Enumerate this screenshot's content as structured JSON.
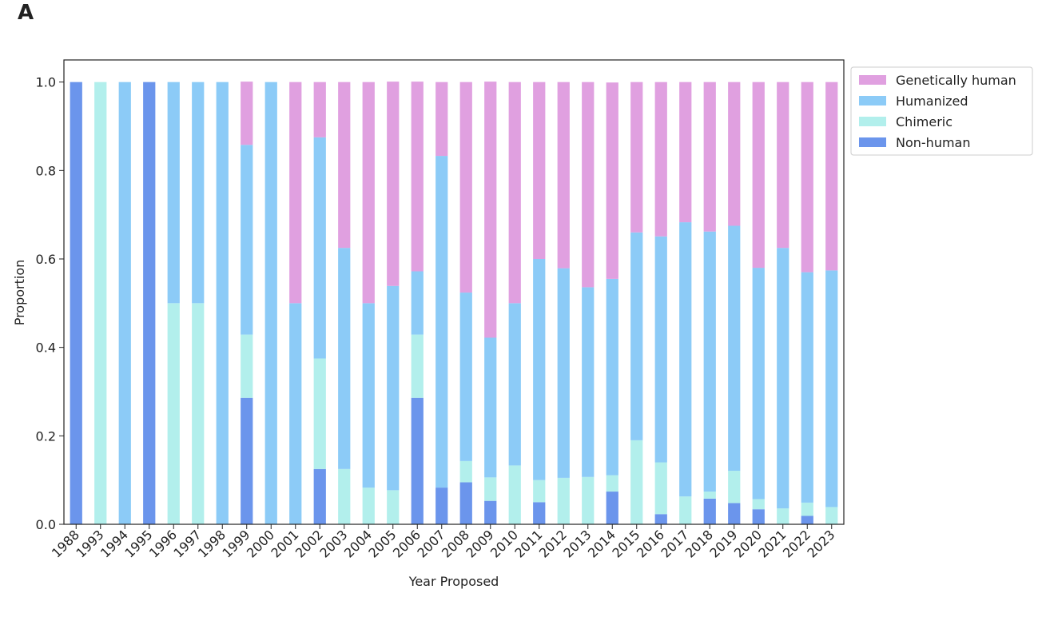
{
  "panel_label": "A",
  "chart_data": {
    "type": "stacked-bar",
    "xlabel": "Year Proposed",
    "ylabel": "Proportion",
    "categories": [
      "1988",
      "1993",
      "1994",
      "1995",
      "1996",
      "1997",
      "1998",
      "1999",
      "2000",
      "2001",
      "2002",
      "2003",
      "2004",
      "2005",
      "2006",
      "2007",
      "2008",
      "2009",
      "2010",
      "2011",
      "2012",
      "2013",
      "2014",
      "2015",
      "2016",
      "2017",
      "2018",
      "2019",
      "2020",
      "2021",
      "2022",
      "2023"
    ],
    "series": [
      {
        "name": "Non-human",
        "color": "#6b95ec",
        "values": [
          1,
          0,
          0,
          1,
          0,
          0,
          0,
          0.286,
          0,
          0,
          0.125,
          0,
          0,
          0,
          0.286,
          0.083,
          0.095,
          0.053,
          0,
          0.05,
          0,
          0,
          0.074,
          0,
          0.023,
          0,
          0.058,
          0.048,
          0.034,
          0,
          0.019,
          0
        ]
      },
      {
        "name": "Chimeric",
        "color": "#b2efec",
        "values": [
          0,
          1,
          0,
          0,
          0.5,
          0.5,
          0,
          0.143,
          0,
          0,
          0.25,
          0.125,
          0.083,
          0.077,
          0.143,
          0,
          0.048,
          0.053,
          0.133,
          0.05,
          0.105,
          0.107,
          0.037,
          0.19,
          0.117,
          0.063,
          0.016,
          0.073,
          0.023,
          0.036,
          0.03,
          0.039
        ]
      },
      {
        "name": "Humanized",
        "color": "#8ccbf7",
        "values": [
          0,
          0,
          1,
          0,
          0.5,
          0.5,
          1,
          0.429,
          1,
          0.5,
          0.5,
          0.5,
          0.417,
          0.462,
          0.143,
          0.75,
          0.381,
          0.316,
          0.367,
          0.5,
          0.474,
          0.429,
          0.444,
          0.47,
          0.511,
          0.62,
          0.588,
          0.554,
          0.523,
          0.589,
          0.521,
          0.535
        ]
      },
      {
        "name": "Genetically human",
        "color": "#e0a0e0",
        "values": [
          0,
          0,
          0,
          0,
          0,
          0,
          0,
          0.143,
          0,
          0.5,
          0.125,
          0.375,
          0.5,
          0.462,
          0.429,
          0.167,
          0.476,
          0.579,
          0.5,
          0.4,
          0.421,
          0.464,
          0.444,
          0.34,
          0.349,
          0.317,
          0.338,
          0.325,
          0.42,
          0.375,
          0.43,
          0.426
        ]
      }
    ],
    "ylim": [
      0,
      1.05
    ],
    "yticks": [
      {
        "value": 0,
        "label": "0.0"
      },
      {
        "value": 0.2,
        "label": "0.2"
      },
      {
        "value": 0.4,
        "label": "0.4"
      },
      {
        "value": 0.6,
        "label": "0.6"
      },
      {
        "value": 0.8,
        "label": "0.8"
      },
      {
        "value": 1,
        "label": "1.0"
      }
    ],
    "legend": "outside-right"
  }
}
